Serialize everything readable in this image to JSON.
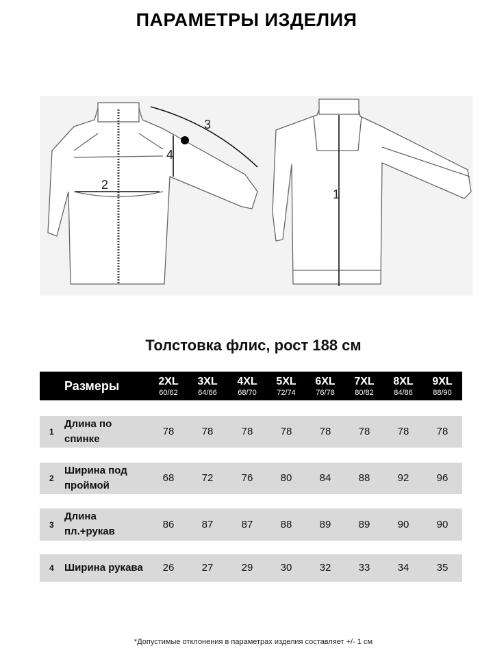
{
  "title": "ПАРАМЕТРЫ ИЗДЕЛИЯ",
  "drawing": {
    "labels": [
      "1",
      "2",
      "3",
      "4"
    ]
  },
  "subtitle": "Толстовка флис, рост 188 см",
  "table": {
    "header_label": "Размеры",
    "sizes": [
      {
        "size": "2XL",
        "range": "60/62"
      },
      {
        "size": "3XL",
        "range": "64/66"
      },
      {
        "size": "4XL",
        "range": "68/70"
      },
      {
        "size": "5XL",
        "range": "72/74"
      },
      {
        "size": "6XL",
        "range": "76/78"
      },
      {
        "size": "7XL",
        "range": "80/82"
      },
      {
        "size": "8XL",
        "range": "84/86"
      },
      {
        "size": "9XL",
        "range": "88/90"
      }
    ],
    "rows": [
      {
        "num": "1",
        "label": "Длина по спинке",
        "values": [
          "78",
          "78",
          "78",
          "78",
          "78",
          "78",
          "78",
          "78"
        ]
      },
      {
        "num": "2",
        "label": "Ширина под проймой",
        "values": [
          "68",
          "72",
          "76",
          "80",
          "84",
          "88",
          "92",
          "96"
        ]
      },
      {
        "num": "3",
        "label": "Длина пл.+рукав",
        "values": [
          "86",
          "87",
          "87",
          "88",
          "89",
          "89",
          "90",
          "90"
        ]
      },
      {
        "num": "4",
        "label": "Ширина рукава",
        "values": [
          "26",
          "27",
          "29",
          "30",
          "32",
          "33",
          "34",
          "35"
        ]
      }
    ]
  },
  "footnote": "*Допустимые  отклонения в параметрах изделия составляет +/- 1 см"
}
